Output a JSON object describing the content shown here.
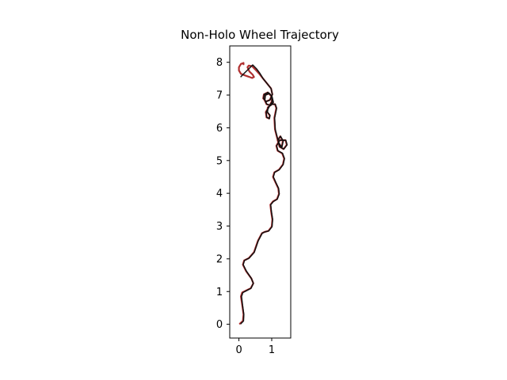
{
  "chart_data": {
    "type": "line",
    "title": "Non-Holo Wheel Trajectory",
    "xlabel": "",
    "ylabel": "",
    "xlim": [
      -0.28,
      1.58
    ],
    "ylim": [
      -0.42,
      8.5
    ],
    "xticks": [
      0,
      1
    ],
    "yticks": [
      0,
      1,
      2,
      3,
      4,
      5,
      6,
      7,
      8
    ],
    "grid": false,
    "legend": "none",
    "colors": {
      "reference": "#b03030",
      "actual": "#111111"
    },
    "series": [
      {
        "role": "reference",
        "color": "#b03030",
        "x": [
          0.03,
          0.12,
          0.14,
          0.1,
          0.06,
          0.1,
          0.2,
          0.36,
          0.44,
          0.38,
          0.22,
          0.12,
          0.16,
          0.3,
          0.46,
          0.58,
          0.7,
          0.78,
          0.9,
          1.0,
          1.02,
          0.98,
          0.96,
          1.04,
          1.16,
          1.22,
          1.2,
          1.12,
          1.04,
          1.08,
          1.22,
          1.34,
          1.38,
          1.32,
          1.18,
          1.14,
          1.24,
          1.42,
          1.46,
          1.36,
          1.24,
          1.18,
          1.26,
          1.34,
          1.3,
          1.2,
          1.1,
          1.08,
          1.14,
          1.1,
          0.98,
          0.88,
          0.86,
          0.94,
          0.92,
          0.84,
          0.82,
          0.9,
          1.0,
          1.0,
          0.92,
          0.8,
          0.78,
          0.84,
          0.96,
          1.04,
          1.0,
          0.88,
          0.76,
          0.74,
          0.82,
          0.94,
          1.02,
          0.98,
          0.86,
          0.74,
          0.62,
          0.5,
          0.4,
          0.3,
          0.26,
          0.32,
          0.42,
          0.46,
          0.4,
          0.3,
          0.18,
          0.06,
          0.0,
          0.0,
          0.06,
          0.14,
          0.14
        ],
        "y": [
          0.02,
          0.1,
          0.3,
          0.6,
          0.85,
          0.97,
          1.02,
          1.1,
          1.25,
          1.4,
          1.62,
          1.82,
          1.95,
          2.02,
          2.2,
          2.55,
          2.78,
          2.82,
          2.85,
          2.98,
          3.2,
          3.45,
          3.65,
          3.75,
          3.82,
          3.98,
          4.15,
          4.32,
          4.5,
          4.64,
          4.72,
          4.88,
          5.06,
          5.22,
          5.3,
          5.45,
          5.62,
          5.62,
          5.48,
          5.35,
          5.42,
          5.62,
          5.74,
          5.6,
          5.4,
          5.55,
          5.95,
          6.3,
          6.6,
          6.72,
          6.72,
          6.62,
          6.48,
          6.38,
          6.28,
          6.32,
          6.48,
          6.62,
          6.8,
          6.95,
          7.05,
          7.0,
          6.85,
          6.72,
          6.68,
          6.78,
          6.95,
          7.08,
          7.02,
          6.9,
          6.8,
          6.85,
          7.02,
          7.2,
          7.35,
          7.5,
          7.65,
          7.78,
          7.88,
          7.9,
          7.85,
          7.72,
          7.62,
          7.55,
          7.52,
          7.56,
          7.6,
          7.65,
          7.75,
          7.85,
          7.95,
          7.98,
          7.94
        ]
      },
      {
        "role": "actual",
        "color": "#111111",
        "x": [
          0.06,
          0.14,
          0.15,
          0.11,
          0.08,
          0.12,
          0.22,
          0.37,
          0.44,
          0.38,
          0.23,
          0.13,
          0.17,
          0.31,
          0.47,
          0.59,
          0.71,
          0.79,
          0.91,
          1.01,
          1.03,
          0.99,
          0.97,
          1.05,
          1.17,
          1.23,
          1.21,
          1.13,
          1.05,
          1.09,
          1.23,
          1.35,
          1.39,
          1.33,
          1.19,
          1.15,
          1.25,
          1.43,
          1.47,
          1.37,
          1.25,
          1.19,
          1.27,
          1.35,
          1.31,
          1.21,
          1.11,
          1.09,
          1.15,
          1.11,
          0.99,
          0.89,
          0.87,
          0.95,
          0.93,
          0.85,
          0.83,
          0.91,
          1.01,
          1.01,
          0.93,
          0.81,
          0.79,
          0.85,
          0.97,
          1.05,
          1.01,
          0.89,
          0.77,
          0.75,
          0.83,
          0.95,
          1.02,
          0.98,
          0.86,
          0.74,
          0.64,
          0.54,
          0.42,
          0.3,
          0.18,
          0.06
        ],
        "y": [
          0.02,
          0.1,
          0.3,
          0.6,
          0.85,
          0.97,
          1.02,
          1.1,
          1.25,
          1.4,
          1.62,
          1.82,
          1.95,
          2.02,
          2.2,
          2.55,
          2.78,
          2.82,
          2.85,
          2.98,
          3.2,
          3.45,
          3.65,
          3.75,
          3.82,
          3.98,
          4.15,
          4.32,
          4.5,
          4.64,
          4.72,
          4.88,
          5.06,
          5.22,
          5.3,
          5.45,
          5.62,
          5.62,
          5.48,
          5.35,
          5.42,
          5.62,
          5.74,
          5.6,
          5.4,
          5.55,
          5.95,
          6.3,
          6.6,
          6.72,
          6.72,
          6.62,
          6.48,
          6.38,
          6.28,
          6.32,
          6.48,
          6.62,
          6.8,
          6.95,
          7.05,
          7.0,
          6.85,
          6.72,
          6.68,
          6.78,
          6.95,
          7.08,
          7.02,
          6.9,
          6.8,
          6.85,
          7.02,
          7.2,
          7.35,
          7.5,
          7.66,
          7.8,
          7.92,
          7.8,
          7.68,
          7.56
        ]
      }
    ]
  }
}
